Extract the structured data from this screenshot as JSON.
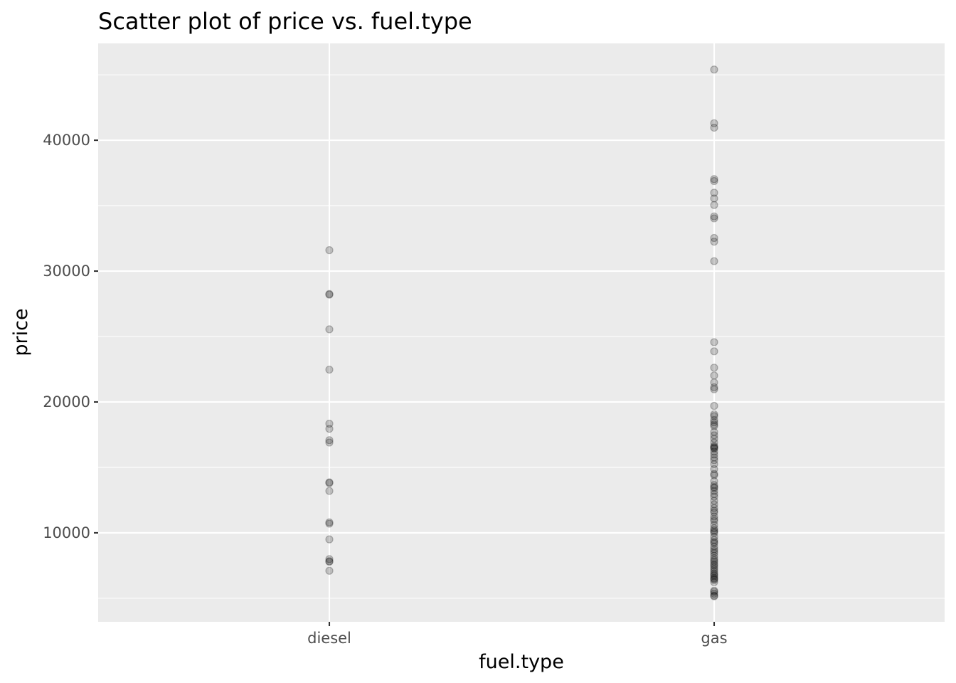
{
  "chart_data": {
    "type": "scatter",
    "title": "Scatter plot of price vs. fuel.type",
    "xlabel": "fuel.type",
    "ylabel": "price",
    "categories": [
      "diesel",
      "gas"
    ],
    "ylim": [
      3200,
      47400
    ],
    "yticks": [
      10000,
      20000,
      30000,
      40000
    ],
    "yticks_labels": [
      "10000",
      "20000",
      "30000",
      "40000"
    ],
    "grid": true,
    "legend": "none",
    "series": [
      {
        "category": "diesel",
        "values": [
          31600,
          28250,
          28200,
          25550,
          22470,
          18340,
          17950,
          17080,
          16900,
          13860,
          13800,
          13200,
          10800,
          10700,
          9500,
          7990,
          7830,
          7790,
          7100
        ]
      },
      {
        "category": "gas",
        "values": [
          45400,
          41300,
          40960,
          37030,
          36880,
          35990,
          35550,
          35050,
          34180,
          34030,
          32530,
          32250,
          30760,
          24570,
          23870,
          22620,
          22020,
          21490,
          21120,
          20970,
          19700,
          19050,
          18920,
          18620,
          18450,
          18280,
          18150,
          17710,
          17450,
          17200,
          16900,
          16640,
          16550,
          16500,
          16430,
          16200,
          15990,
          15750,
          15550,
          15250,
          14870,
          14500,
          14400,
          13950,
          13650,
          13500,
          13420,
          13200,
          12960,
          12760,
          12450,
          12170,
          11900,
          11690,
          11550,
          11250,
          11050,
          10900,
          10600,
          10350,
          10200,
          10100,
          9990,
          9700,
          9450,
          9300,
          9200,
          8950,
          8750,
          8600,
          8450,
          8250,
          8050,
          7900,
          7780,
          7610,
          7500,
          7350,
          7200,
          7050,
          6900,
          6790,
          6690,
          6550,
          6480,
          6400,
          6230,
          5580,
          5500,
          5350,
          5200,
          5150
        ]
      }
    ]
  }
}
